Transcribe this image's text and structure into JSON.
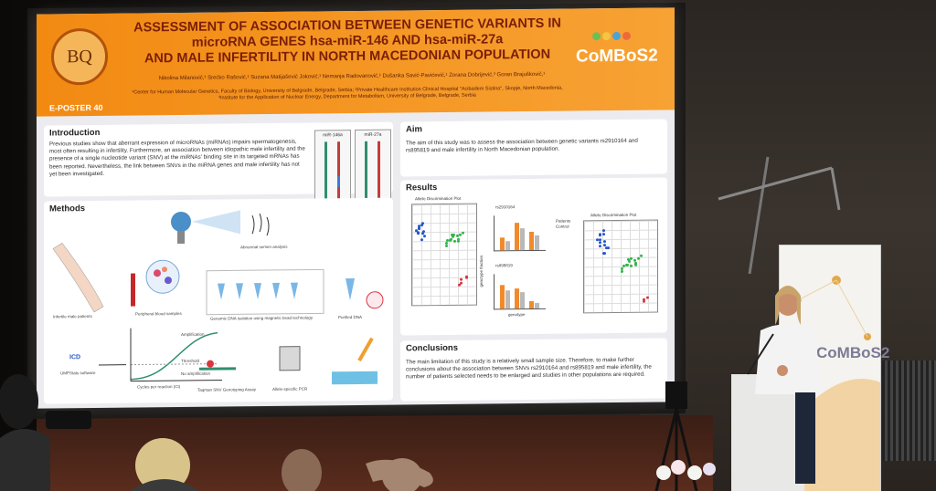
{
  "poster": {
    "title_line1": "ASSESSMENT OF ASSOCIATION BETWEEN GENETIC VARIANTS IN",
    "title_line2": "microRNA GENES hsa-miR-146 AND hsa-miR-27a",
    "title_line3": "AND MALE INFERTILITY IN NORTH MACEDONIAN POPULATION",
    "authors": "Nikolina Milanović,¹ Srećko Rašović,¹ Suzana Matijašević Joković,¹ Nemanja Radovanović,¹ Dušanka Savić-Pavićević,¹ Zorana Dobrijević,³ Goran Brajušković,¹",
    "affil_line1": "¹Center for Human Molecular Genetics, Faculty of Biology, University of Belgrade, Belgrade, Serbia; ²Private Healthcare Institution Clinical Hospital \"Acibadem Sistina\", Skopje, North Macedonia,",
    "affil_line2": "³Institute for the Application of Nuclear Energy, Department for Metabolism, University of Belgrade, Belgrade, Serbia",
    "logo_right": "CoMBoS2",
    "eposter": "E-POSTER 40",
    "logo_left_text": "BQ",
    "logo_dot_colors": [
      "#6bbf59",
      "#f5c542",
      "#4ba3d9",
      "#ef6a3a"
    ]
  },
  "introduction": {
    "heading": "Introduction",
    "text": "Previous studies show that aberrant expression of microRNAs (miRNAs) impairs spermatogenesis, most often resulting in infertility. Furthermore, an association between idiopathic male infertility and the presence of a single nucleotide variant (SNV) at the miRNAs' binding site in its targeted mRNAs has been reported. Nevertheless, the link between SNVs in the miRNA genes and male infertility has not yet been investigated.",
    "rna_labels": [
      "miR-146a",
      "miR-27a"
    ]
  },
  "methods": {
    "heading": "Methods",
    "labels": {
      "semen": "Abnormal semen analysis",
      "patients": "Infertile male patients",
      "blood": "Peripheral blood samples",
      "dna_isolation": "Genomic DNA isolation using magnetic bead technology",
      "purified": "Purified DNA",
      "pcr": "Allele-specific PCR",
      "taqman": "Taqman SNV Genotyping Assay",
      "amplification": "Amplification",
      "threshold": "Threshold",
      "no_amp": "No amplification",
      "cycles": "Cycles per reaction (Ct)",
      "icd": "ICD",
      "software": "UMPStats software"
    }
  },
  "aim": {
    "heading": "Aim",
    "text": "The aim of this study was to assess the association between genetic variants rs2910164 and rs895819 and male infertility in North Macedonian population."
  },
  "results": {
    "heading": "Results",
    "plot1_title": "Allelic Discrimination Plot",
    "plot2_title": "rs2910164",
    "plot3_title": "rs895819",
    "plot4_title": "Allelic Discrimination Plot",
    "legend": [
      "Patients",
      "Control"
    ],
    "ylabel": "genotype fraction",
    "xlabel": "genotype"
  },
  "conclusions": {
    "heading": "Conclusions",
    "text": "The main limitation of this study is a relatively small sample size. Therefore, to make further conclusions about the association between SNVs rs2910164 and rs895819 and male infertility, the number of patients selected needs to be enlarged and studies in other populations are required."
  },
  "banner": {
    "word": "CoMBoS2"
  },
  "colors": {
    "header_orange": "#f28a12",
    "title_red": "#7a1e08",
    "patients_bar": "#f08a2c",
    "control_bar": "#b9b9b9",
    "cluster_blue": "#2456c8",
    "cluster_green": "#33b54a",
    "cluster_red": "#d9363e"
  }
}
